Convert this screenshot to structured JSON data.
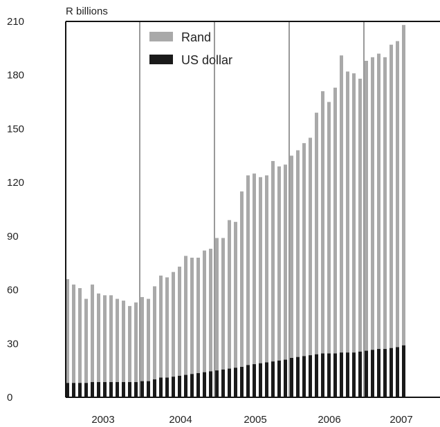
{
  "chart_data": {
    "type": "bar",
    "unit_label": "R billions",
    "yticks": [
      "0",
      "30",
      "60",
      "90",
      "120",
      "150",
      "180",
      "210"
    ],
    "ylim": [
      0,
      210
    ],
    "year_labels": [
      "2003",
      "2004",
      "2005",
      "2006",
      "2007"
    ],
    "grid": "vertical year separators",
    "legend_placement": "top-left",
    "series": [
      {
        "name": "Rand",
        "color": "#a9a9a9",
        "values": [
          66,
          63,
          61,
          55,
          63,
          58,
          57,
          57,
          55,
          54,
          51,
          53,
          56,
          55,
          62,
          68,
          67,
          70,
          73,
          79,
          78,
          78,
          82,
          83,
          89,
          89,
          99,
          98,
          115,
          124,
          125,
          123,
          124,
          132,
          129,
          130,
          135,
          138,
          142,
          145,
          159,
          171,
          165,
          173,
          191,
          182,
          181,
          178,
          188,
          190,
          192,
          190,
          197,
          199,
          208
        ]
      },
      {
        "name": "US dollar",
        "color": "#1a1a1a",
        "values": [
          8,
          8,
          8,
          8,
          8.5,
          8.5,
          8.5,
          8.5,
          8.5,
          8.5,
          8.5,
          8.5,
          9,
          9,
          10,
          11,
          11,
          11.5,
          12,
          12.5,
          13,
          13.5,
          14,
          14.5,
          15,
          15.5,
          16,
          16.5,
          17,
          18,
          18.5,
          19,
          19.5,
          20,
          20.5,
          21,
          22,
          22.5,
          23,
          23.5,
          24,
          24.5,
          24.5,
          24.5,
          25,
          25,
          25,
          25.5,
          26,
          26.5,
          27,
          27,
          27.5,
          28,
          29
        ]
      }
    ]
  }
}
